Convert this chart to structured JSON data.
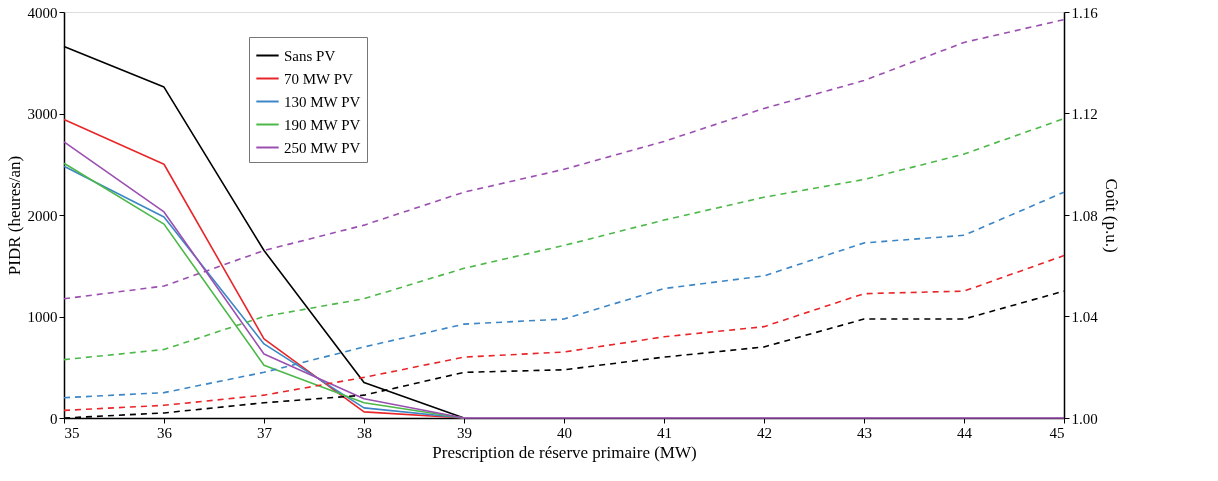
{
  "chart_data": {
    "type": "line",
    "xlabel": "Prescription de réserve primaire (MW)",
    "ylabel": "PIDR (heures/an)",
    "y2label": "Coût (p.u.)",
    "x": [
      35,
      36,
      37,
      38,
      39,
      40,
      41,
      42,
      43,
      44,
      45
    ],
    "xlim": [
      35,
      45
    ],
    "xticks": [
      35,
      36,
      37,
      38,
      39,
      40,
      41,
      42,
      43,
      44,
      45
    ],
    "ylim": [
      0,
      4000
    ],
    "yticks": [
      0,
      1000,
      2000,
      3000,
      4000
    ],
    "y2lim": [
      1.0,
      1.16
    ],
    "y2ticks": [
      {
        "value": 1.0,
        "label": "1.00"
      },
      1.04,
      1.08,
      1.12,
      1.16
    ],
    "grid": false,
    "legend": "top left",
    "marker": "none",
    "line_style": "solid",
    "series": [
      {
        "name": "Sans PV",
        "color": "#000000",
        "values": [
          3660,
          3260,
          1650,
          350,
          0,
          null,
          null,
          null,
          null,
          null,
          null
        ]
      },
      {
        "name": "70 MW PV",
        "color": "#e8262a",
        "values": [
          2940,
          2500,
          780,
          60,
          0,
          null,
          null,
          null,
          null,
          null,
          null
        ]
      },
      {
        "name": "130 MW PV",
        "color": "#3c86c6",
        "values": [
          2480,
          1980,
          730,
          100,
          0,
          null,
          null,
          null,
          null,
          null,
          null
        ]
      },
      {
        "name": "190 MW PV",
        "color": "#4cb848",
        "values": [
          2510,
          1910,
          520,
          150,
          0,
          null,
          null,
          null,
          null,
          null,
          null
        ]
      },
      {
        "name": "250 MW PV",
        "color": "#9b4fb0",
        "values": [
          2720,
          2030,
          630,
          190,
          0,
          0,
          0,
          0,
          0,
          0,
          0
        ]
      },
      {
        "color": "#000000",
        "axis": "y2",
        "line_style": "dashed",
        "values": [
          1.0,
          1.002,
          1.006,
          1.009,
          1.018,
          1.019,
          1.024,
          1.028,
          1.039,
          1.039,
          1.05
        ]
      },
      {
        "color": "#e8262a",
        "axis": "y2",
        "line_style": "dashed",
        "values": [
          1.003,
          1.005,
          1.009,
          1.016,
          1.024,
          1.026,
          1.032,
          1.036,
          1.049,
          1.05,
          1.064
        ]
      },
      {
        "color": "#3c86c6",
        "axis": "y2",
        "line_style": "dashed",
        "values": [
          1.008,
          1.01,
          1.018,
          1.028,
          1.037,
          1.039,
          1.051,
          1.056,
          1.069,
          1.072,
          1.089
        ]
      },
      {
        "color": "#4cb848",
        "axis": "y2",
        "line_style": "dashed",
        "values": [
          1.023,
          1.027,
          1.04,
          1.047,
          1.059,
          1.068,
          1.078,
          1.087,
          1.094,
          1.104,
          1.118
        ]
      },
      {
        "color": "#9b4fb0",
        "axis": "y2",
        "line_style": "dashed",
        "values": [
          1.047,
          1.052,
          1.066,
          1.076,
          1.089,
          1.098,
          1.109,
          1.122,
          1.133,
          1.148,
          1.157
        ]
      }
    ]
  }
}
